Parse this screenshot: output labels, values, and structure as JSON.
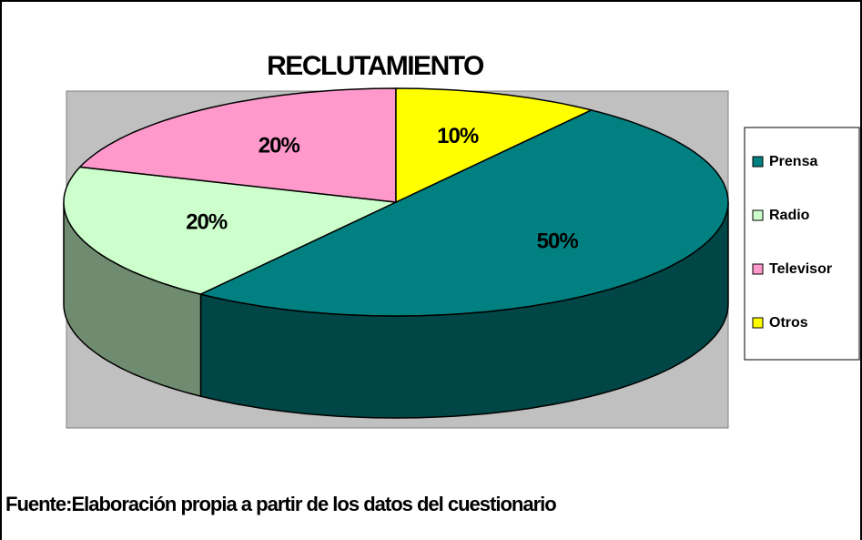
{
  "chart_data": {
    "type": "pie",
    "title": "RECLUTAMIENTO",
    "categories": [
      "Prensa",
      "Radio",
      "Televisor",
      "Otros"
    ],
    "values": [
      50,
      20,
      20,
      10
    ],
    "value_labels": [
      "50%",
      "20%",
      "20%",
      "10%"
    ],
    "colors": [
      "#008080",
      "#ccffcc",
      "#ff99cc",
      "#ffff00"
    ],
    "legend": "right",
    "source": "Fuente:Elaboración propia a partir de los datos del cuestionario"
  }
}
